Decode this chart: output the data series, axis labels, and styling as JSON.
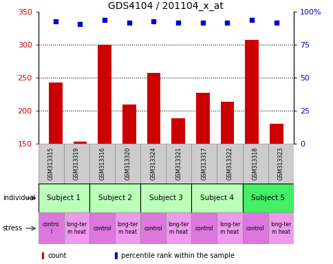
{
  "title": "GDS4104 / 201104_x_at",
  "samples": [
    "GSM313315",
    "GSM313319",
    "GSM313316",
    "GSM313320",
    "GSM313324",
    "GSM313321",
    "GSM313317",
    "GSM313322",
    "GSM313318",
    "GSM313323"
  ],
  "bar_values": [
    243,
    153,
    300,
    210,
    258,
    189,
    227,
    214,
    308,
    180
  ],
  "percentile_values": [
    93,
    91,
    94,
    92,
    93,
    92,
    92,
    92,
    94,
    92
  ],
  "subjects_data": [
    [
      0,
      2,
      "Subject 1",
      "#bbffbb"
    ],
    [
      2,
      4,
      "Subject 2",
      "#bbffbb"
    ],
    [
      4,
      6,
      "Subject 3",
      "#bbffbb"
    ],
    [
      6,
      8,
      "Subject 4",
      "#bbffbb"
    ],
    [
      8,
      10,
      "Subject 5",
      "#44ee66"
    ]
  ],
  "stress_items": [
    [
      0,
      1,
      "contro\nl",
      "#dd77dd"
    ],
    [
      1,
      2,
      "long-ter\nm heat",
      "#ee99ee"
    ],
    [
      2,
      3,
      "control",
      "#dd77dd"
    ],
    [
      3,
      4,
      "long-ter\nm heat",
      "#ee99ee"
    ],
    [
      4,
      5,
      "control",
      "#dd77dd"
    ],
    [
      5,
      6,
      "long-ter\nm heat",
      "#ee99ee"
    ],
    [
      6,
      7,
      "control",
      "#dd77dd"
    ],
    [
      7,
      8,
      "long-ter\nm heat",
      "#ee99ee"
    ],
    [
      8,
      9,
      "control",
      "#dd77dd"
    ],
    [
      9,
      10,
      "long-ter\nm heat",
      "#ee99ee"
    ]
  ],
  "ylim_left": [
    150,
    350
  ],
  "ylim_right": [
    0,
    100
  ],
  "yticks_left": [
    150,
    200,
    250,
    300,
    350
  ],
  "yticks_right": [
    0,
    25,
    50,
    75,
    100
  ],
  "bar_color": "#cc0000",
  "dot_color": "#0000cc",
  "grid_yticks": [
    200,
    250,
    300
  ],
  "tick_color_left": "#cc0000",
  "tick_color_right": "#0000cc",
  "sample_bg_color": "#cccccc",
  "sample_edge_color": "#888888",
  "subject_edge_color": "#000000",
  "stress_edge_color": "#888888"
}
